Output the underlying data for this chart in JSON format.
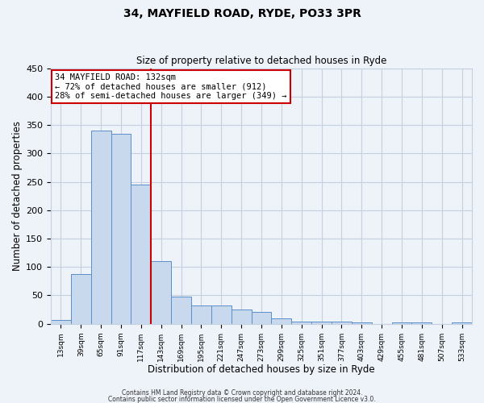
{
  "title": "34, MAYFIELD ROAD, RYDE, PO33 3PR",
  "subtitle": "Size of property relative to detached houses in Ryde",
  "xlabel": "Distribution of detached houses by size in Ryde",
  "ylabel": "Number of detached properties",
  "bar_values": [
    7,
    88,
    340,
    335,
    245,
    110,
    48,
    32,
    32,
    25,
    21,
    10,
    4,
    4,
    4,
    3,
    0,
    3,
    2,
    0,
    2
  ],
  "all_labels": [
    "13sqm",
    "39sqm",
    "65sqm",
    "91sqm",
    "117sqm",
    "143sqm",
    "169sqm",
    "195sqm",
    "221sqm",
    "247sqm",
    "273sqm",
    "299sqm",
    "325sqm",
    "351sqm",
    "377sqm",
    "403sqm",
    "429sqm",
    "455sqm",
    "481sqm",
    "507sqm",
    "533sqm"
  ],
  "bar_color": "#c8d8ed",
  "bar_edge_color": "#5b8fc9",
  "vline_x": 4.5,
  "vline_color": "#cc0000",
  "annotation_title": "34 MAYFIELD ROAD: 132sqm",
  "annotation_line1": "← 72% of detached houses are smaller (912)",
  "annotation_line2": "28% of semi-detached houses are larger (349) →",
  "annotation_box_color": "#ffffff",
  "annotation_box_edge": "#cc0000",
  "ylim": [
    0,
    450
  ],
  "yticks": [
    0,
    50,
    100,
    150,
    200,
    250,
    300,
    350,
    400,
    450
  ],
  "footer1": "Contains HM Land Registry data © Crown copyright and database right 2024.",
  "footer2": "Contains public sector information licensed under the Open Government Licence v3.0.",
  "bg_color": "#eef2f9",
  "grid_color": "#c5d0e0"
}
